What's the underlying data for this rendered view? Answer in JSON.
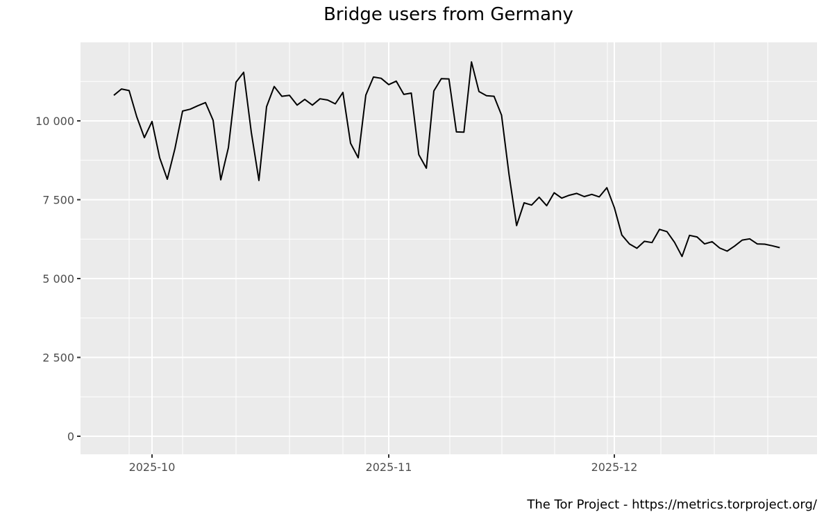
{
  "chart_data": {
    "type": "line",
    "title": "Bridge users from Germany",
    "caption": "The Tor Project - https://metrics.torproject.org/",
    "xlabel": "",
    "ylabel": "",
    "ylim": [
      0,
      12000
    ],
    "y_ticks": [
      0,
      2500,
      5000,
      7500,
      10000
    ],
    "y_tick_labels": [
      "0",
      "2 500",
      "5 000",
      "7 500",
      "10 000"
    ],
    "x_tick_labels": [
      "2025-10",
      "2025-11",
      "2025-12"
    ],
    "x_range": [
      "2025-09-26",
      "2025-12-23"
    ],
    "grid": true,
    "legend": "none",
    "colors": {
      "panel_background": "#ebebeb",
      "grid_major": "#ffffff",
      "line": "#000000",
      "axis_text": "#4d4d4d"
    },
    "series": [
      {
        "name": "Bridge users",
        "start_date": "2025-09-26",
        "values": [
          10810,
          11010,
          10960,
          10130,
          9470,
          9980,
          8830,
          8150,
          9120,
          10310,
          10370,
          10480,
          10580,
          10020,
          8130,
          9150,
          11230,
          11540,
          9640,
          8110,
          10450,
          11090,
          10780,
          10810,
          10500,
          10680,
          10500,
          10700,
          10660,
          10540,
          10900,
          9290,
          8830,
          10820,
          11390,
          11350,
          11150,
          11260,
          10840,
          10880,
          8930,
          8500,
          10950,
          11340,
          11330,
          9650,
          9640,
          11870,
          10930,
          10800,
          10780,
          10180,
          8300,
          6680,
          7400,
          7330,
          7580,
          7310,
          7720,
          7550,
          7640,
          7700,
          7600,
          7670,
          7590,
          7880,
          7250,
          6380,
          6100,
          5960,
          6180,
          6140,
          6560,
          6490,
          6150,
          5700,
          6370,
          6320,
          6100,
          6170,
          5970,
          5870,
          6030,
          6220,
          6260,
          6100,
          6090,
          6040,
          5980
        ]
      }
    ]
  }
}
